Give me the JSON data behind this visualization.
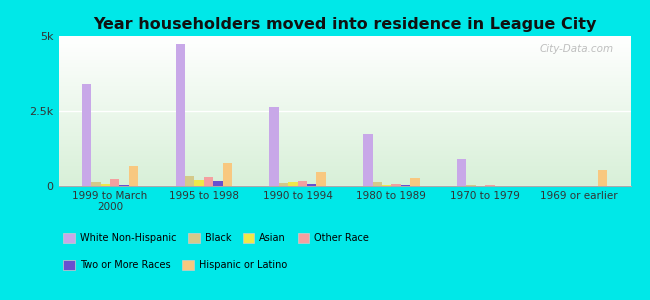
{
  "title": "Year householders moved into residence in League City",
  "categories": [
    "1999 to March\n2000",
    "1995 to 1998",
    "1990 to 1994",
    "1980 to 1989",
    "1970 to 1979",
    "1969 or earlier"
  ],
  "series": {
    "White Non-Hispanic": [
      3400,
      4750,
      2650,
      1750,
      900,
      0
    ],
    "Black": [
      150,
      350,
      100,
      120,
      30,
      0
    ],
    "Asian": [
      80,
      200,
      130,
      40,
      0,
      0
    ],
    "Other Race": [
      220,
      290,
      160,
      80,
      30,
      0
    ],
    "Two or More Races": [
      50,
      170,
      80,
      50,
      0,
      0
    ],
    "Hispanic or Latino": [
      680,
      760,
      460,
      260,
      0,
      520
    ]
  },
  "colors": {
    "White Non-Hispanic": "#c8a8e8",
    "Black": "#d4c98a",
    "Asian": "#f0e84a",
    "Other Race": "#f4a0a0",
    "Two or More Races": "#6a4fcf",
    "Hispanic or Latino": "#f8c880"
  },
  "ylim": [
    0,
    5000
  ],
  "yticks": [
    0,
    2500,
    5000
  ],
  "ytick_labels": [
    "0",
    "2.5k",
    "5k"
  ],
  "background_color": "#00e8e8",
  "watermark": "City-Data.com",
  "bar_width": 0.1,
  "legend_row1": [
    "White Non-Hispanic",
    "Black",
    "Asian",
    "Other Race"
  ],
  "legend_row2": [
    "Two or More Races",
    "Hispanic or Latino"
  ]
}
